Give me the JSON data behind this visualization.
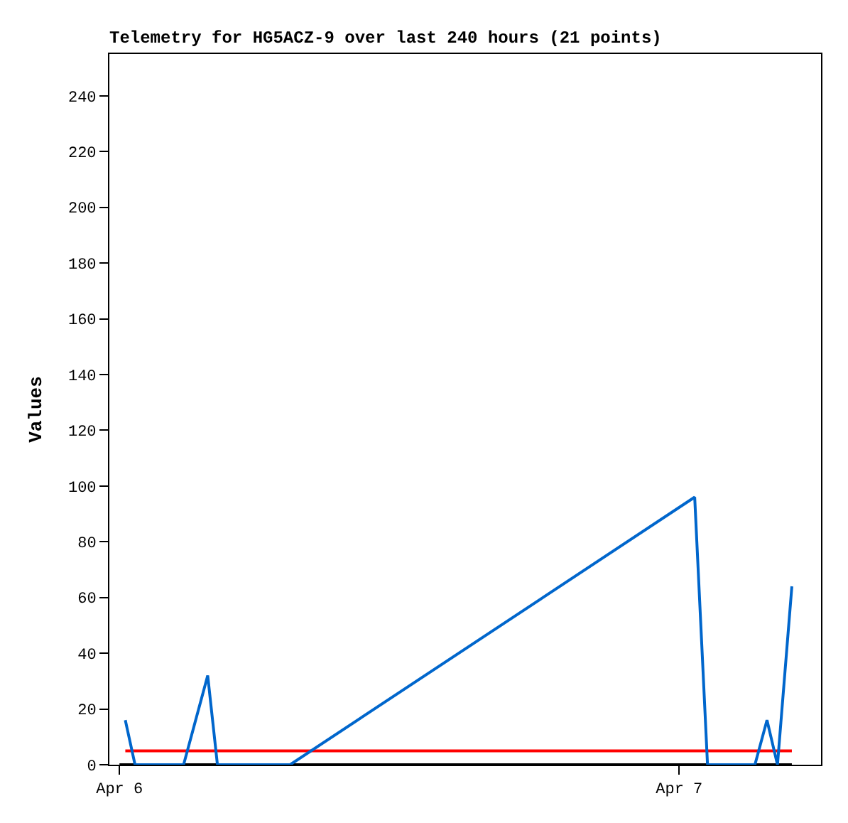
{
  "chart_data": {
    "type": "line",
    "title": "Telemetry for HG5ACZ-9 over last 240 hours (21 points)",
    "ylabel": "Values",
    "xlim": [
      "--04-05T23:34",
      "--04-07T06:05"
    ],
    "xticks": [
      {
        "value": "--04-06",
        "label": "Apr 6"
      },
      {
        "value": "--04-07",
        "label": "Apr 7"
      }
    ],
    "ylim": [
      0,
      255
    ],
    "yticks": [
      0,
      20,
      40,
      60,
      80,
      100,
      120,
      140,
      160,
      180,
      200,
      220,
      240
    ],
    "legend": false,
    "marker": "none",
    "line_style": "solid",
    "series": [
      {
        "color": "#000000",
        "x": [
          "--04-06T00:00",
          "--04-07T04:50"
        ],
        "values": [
          0,
          0
        ]
      },
      {
        "color": "#ff0000",
        "x": [
          "--04-06T00:15",
          "--04-07T04:50"
        ],
        "values": [
          5,
          5
        ]
      },
      {
        "color": "#0066cc",
        "x": [
          "--04-06T00:15",
          "--04-06T00:40",
          "--04-06T02:45",
          "--04-06T03:47",
          "--04-06T04:12",
          "--04-06T07:19",
          "--04-07T00:40",
          "--04-07T01:13",
          "--04-07T03:15",
          "--04-07T03:46",
          "--04-07T04:13",
          "--04-07T04:50"
        ],
        "values": [
          16,
          0,
          0,
          32,
          0,
          0,
          96,
          0,
          0,
          16,
          0,
          64
        ]
      }
    ]
  }
}
